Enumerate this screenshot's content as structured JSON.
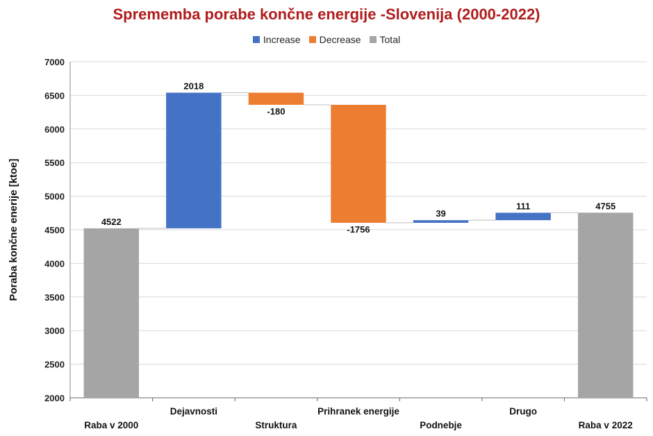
{
  "chart_data": {
    "type": "waterfall",
    "title": "Sprememba porabe končne energije -Slovenija (2000-2022)",
    "ylabel": "Poraba končne enerije [ktoe]",
    "xlabel": "",
    "ylim": [
      2000,
      7000
    ],
    "yticks": [
      2000,
      2500,
      3000,
      3500,
      4000,
      4500,
      5000,
      5500,
      6000,
      6500,
      7000
    ],
    "grid": true,
    "legend_position": "top",
    "legend": [
      {
        "name": "Increase",
        "color": "#4472c4"
      },
      {
        "name": "Decrease",
        "color": "#ed7d31"
      },
      {
        "name": "Total",
        "color": "#a5a5a5"
      }
    ],
    "categories": [
      "Raba v 2000",
      "Dejavnosti",
      "Struktura",
      "Prihranek energije",
      "Podnebje",
      "Drugo",
      "Raba v 2022"
    ],
    "values": [
      4522,
      2018,
      -180,
      -1756,
      39,
      111,
      4755
    ],
    "kinds": [
      "total",
      "increase",
      "decrease",
      "decrease",
      "increase",
      "increase",
      "total"
    ],
    "labels": [
      "4522",
      "2018",
      "-180",
      "-1756",
      "39",
      "111",
      "4755"
    ]
  }
}
